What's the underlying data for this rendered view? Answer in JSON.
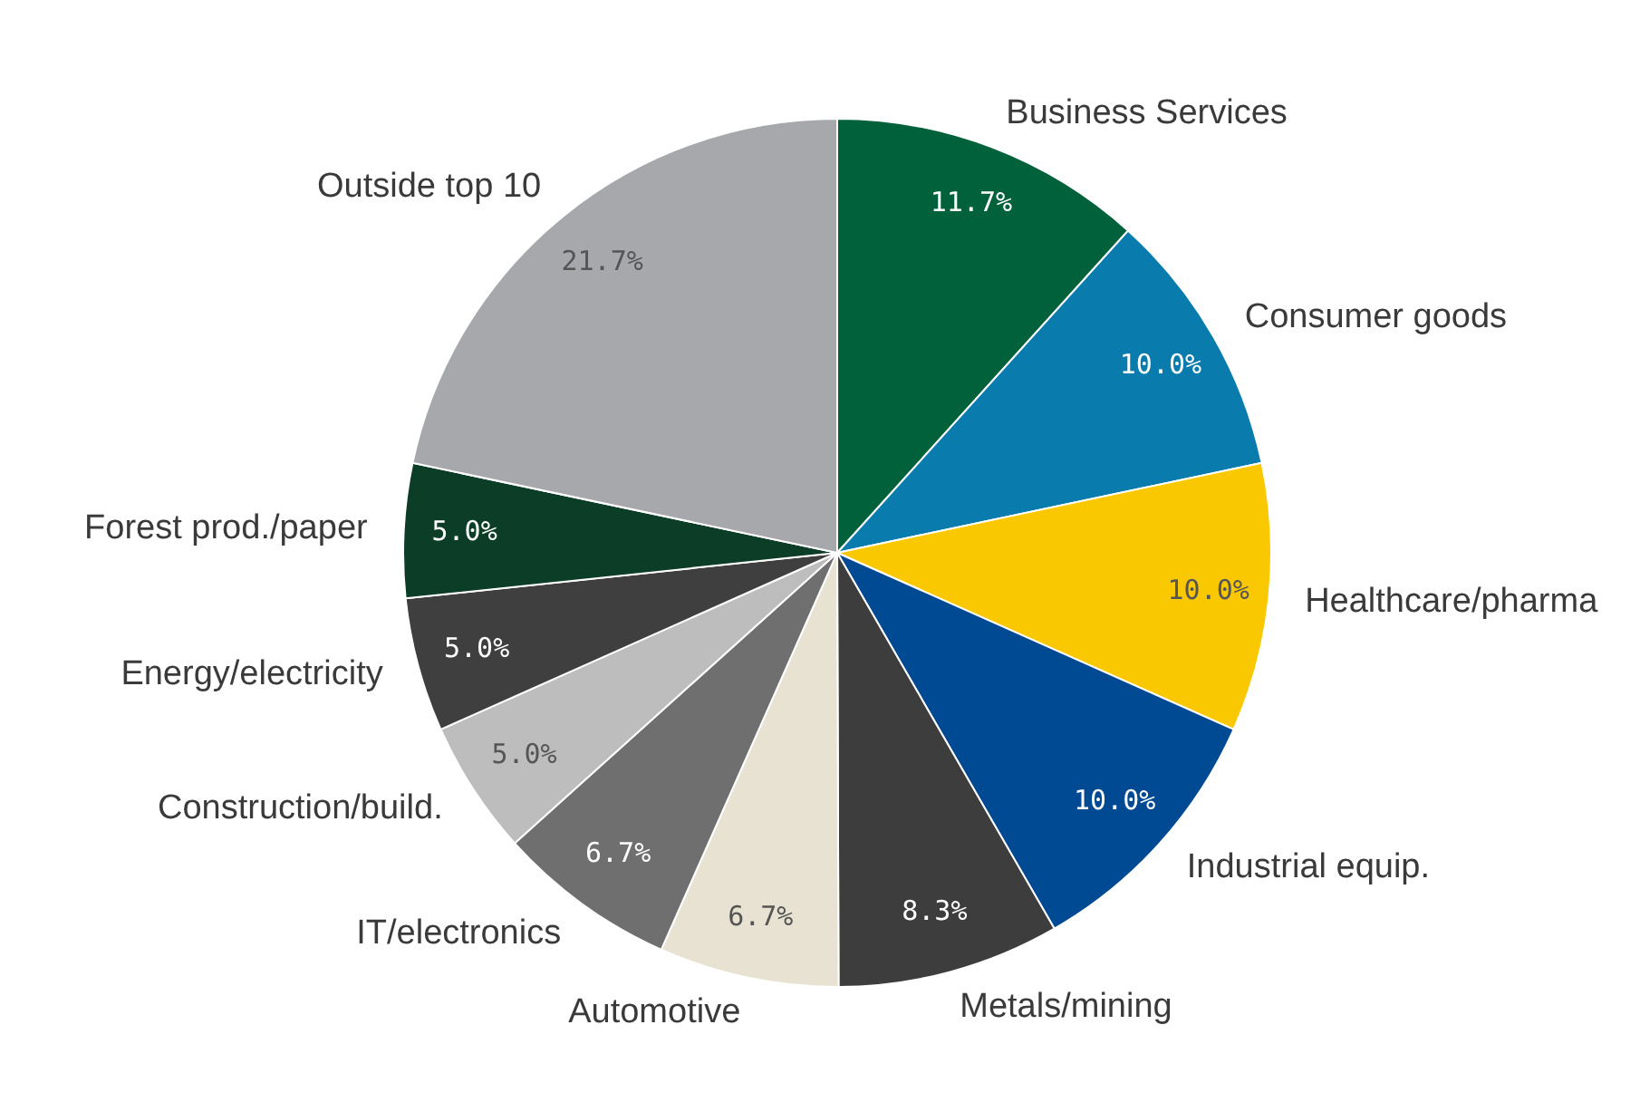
{
  "chart_data": {
    "type": "pie",
    "categories": [
      "Business Services",
      "Consumer goods",
      "Healthcare/pharma",
      "Industrial equip.",
      "Metals/mining",
      "Automotive",
      "IT/electronics",
      "Construction/build.",
      "Energy/electricity",
      "Forest prod./paper",
      "Outside top 10"
    ],
    "values": [
      11.7,
      10.0,
      10.0,
      10.0,
      8.3,
      6.7,
      6.7,
      5.0,
      5.0,
      5.0,
      21.7
    ],
    "value_labels": [
      "11.7%",
      "10.0%",
      "10.0%",
      "10.0%",
      "8.3%",
      "6.7%",
      "6.7%",
      "5.0%",
      "5.0%",
      "5.0%",
      "21.7%"
    ],
    "colors": [
      "#00613b",
      "#0a7bad",
      "#f9c800",
      "#004a93",
      "#3d3d3d",
      "#e7e2d1",
      "#6f6f6f",
      "#bdbdbd",
      "#3f3f3f",
      "#0c3d27",
      "#a6a8ab"
    ],
    "legend": false
  }
}
